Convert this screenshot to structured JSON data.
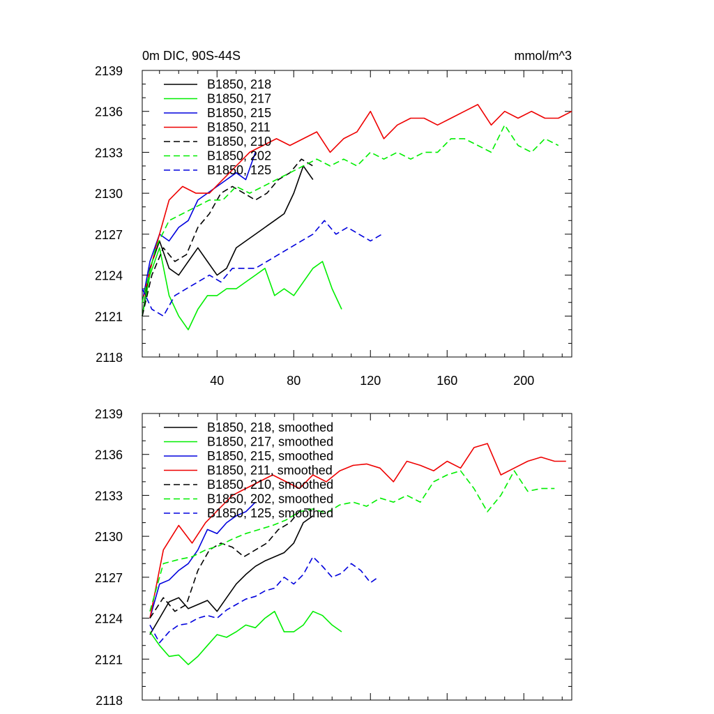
{
  "header": {
    "title": "0m DIC, 90S-44S",
    "units": "mmol/m^3"
  },
  "chart_data": [
    {
      "type": "line",
      "name": "raw",
      "xlim": [
        1,
        225
      ],
      "ylim": [
        2118,
        2139
      ],
      "xticks": [
        40,
        80,
        120,
        160,
        200
      ],
      "xtick_labels": [
        "40",
        "80",
        "120",
        "160",
        "200"
      ],
      "yticks": [
        2118,
        2121,
        2124,
        2127,
        2130,
        2133,
        2136,
        2139
      ],
      "ytick_labels": [
        "2118",
        "2121",
        "2124",
        "2127",
        "2130",
        "2133",
        "2136",
        "2139"
      ],
      "legend_position": "top-left",
      "series": [
        {
          "name": "B1850, 218",
          "color": "#000000",
          "dash": false,
          "x": [
            1,
            5,
            10,
            15,
            20,
            25,
            30,
            35,
            40,
            45,
            50,
            55,
            60,
            65,
            70,
            75,
            80,
            85,
            90
          ],
          "y": [
            2121,
            2124.5,
            2126.5,
            2124.5,
            2124,
            2125,
            2126,
            2125,
            2124,
            2124.5,
            2126,
            2126.5,
            2127,
            2127.5,
            2128,
            2128.5,
            2130,
            2132,
            2131
          ]
        },
        {
          "name": "B1850, 217",
          "color": "#00ee00",
          "dash": false,
          "x": [
            1,
            5,
            10,
            15,
            20,
            25,
            30,
            35,
            40,
            45,
            50,
            55,
            60,
            65,
            70,
            75,
            80,
            85,
            90,
            95,
            100,
            105
          ],
          "y": [
            2121,
            2124,
            2126,
            2122.5,
            2121,
            2120,
            2121.5,
            2122.5,
            2122.5,
            2123,
            2123,
            2123.5,
            2124,
            2124.5,
            2122.5,
            2123,
            2122.5,
            2123.5,
            2124.5,
            2125,
            2123,
            2121.5
          ]
        },
        {
          "name": "B1850, 215",
          "color": "#0000dd",
          "dash": false,
          "x": [
            1,
            5,
            10,
            15,
            20,
            25,
            30,
            35,
            40,
            45,
            50,
            55,
            60
          ],
          "y": [
            2122,
            2125,
            2127,
            2126.5,
            2127.5,
            2128,
            2129.5,
            2130,
            2130.5,
            2131,
            2131.5,
            2131,
            2133
          ]
        },
        {
          "name": "B1850, 211",
          "color": "#ee0000",
          "dash": false,
          "x": [
            1,
            8,
            15,
            22,
            29,
            36,
            43,
            50,
            57,
            64,
            71,
            78,
            85,
            92,
            99,
            106,
            113,
            120,
            127,
            134,
            141,
            148,
            155,
            162,
            169,
            176,
            183,
            190,
            197,
            204,
            211,
            218,
            225
          ],
          "y": [
            2122,
            2126,
            2129.5,
            2130.5,
            2130,
            2130,
            2131,
            2132,
            2133,
            2133.5,
            2134,
            2133.5,
            2134,
            2134.5,
            2133,
            2134,
            2134.5,
            2136,
            2134,
            2135,
            2135.5,
            2135.5,
            2135,
            2135.5,
            2136,
            2136.5,
            2135,
            2136,
            2135.5,
            2136,
            2135.5,
            2135.5,
            2136
          ]
        },
        {
          "name": "B1850, 210",
          "color": "#000000",
          "dash": true,
          "x": [
            1,
            6,
            12,
            18,
            24,
            30,
            36,
            42,
            48,
            54,
            60,
            66,
            72,
            78,
            84,
            90
          ],
          "y": [
            2121,
            2124,
            2126,
            2125,
            2125.5,
            2127.5,
            2128.5,
            2130,
            2130.5,
            2130,
            2129.5,
            2130,
            2131,
            2131.5,
            2132.5,
            2132
          ]
        },
        {
          "name": "B1850, 202",
          "color": "#00ee00",
          "dash": true,
          "x": [
            1,
            8,
            15,
            22,
            29,
            36,
            43,
            50,
            57,
            64,
            71,
            78,
            85,
            92,
            99,
            106,
            113,
            120,
            127,
            134,
            141,
            148,
            155,
            162,
            169,
            176,
            183,
            190,
            197,
            204,
            211,
            218
          ],
          "y": [
            2122,
            2126,
            2128,
            2128.5,
            2129,
            2129.5,
            2129.5,
            2130.5,
            2130,
            2130.5,
            2131,
            2131.5,
            2132,
            2132.5,
            2132,
            2132.5,
            2132,
            2133,
            2132.5,
            2133,
            2132.5,
            2133,
            2133,
            2134,
            2134,
            2133.5,
            2133,
            2135,
            2133.5,
            2133,
            2134,
            2133.5
          ]
        },
        {
          "name": "B1850, 125",
          "color": "#0000dd",
          "dash": true,
          "x": [
            1,
            6,
            12,
            18,
            24,
            30,
            36,
            42,
            48,
            54,
            60,
            66,
            72,
            78,
            84,
            90,
            96,
            102,
            108,
            114,
            120,
            126
          ],
          "y": [
            2123,
            2121.5,
            2121,
            2122.5,
            2123,
            2123.5,
            2124,
            2123.5,
            2124.5,
            2124.5,
            2124.5,
            2125,
            2125.5,
            2126,
            2126.5,
            2127,
            2128,
            2127,
            2127.5,
            2127,
            2126.5,
            2127
          ]
        }
      ]
    },
    {
      "type": "line",
      "name": "smoothed",
      "xlim": [
        1,
        225
      ],
      "ylim": [
        2118,
        2139
      ],
      "xticks": [
        40,
        80,
        120,
        160,
        200
      ],
      "yticks": [
        2118,
        2121,
        2124,
        2127,
        2130,
        2133,
        2136,
        2139
      ],
      "ytick_labels": [
        "2118",
        "2121",
        "2124",
        "2127",
        "2130",
        "2133",
        "2136",
        "2139"
      ],
      "legend_position": "top-left",
      "series": [
        {
          "name": "B1850, 218, smoothed",
          "color": "#000000",
          "dash": false,
          "x": [
            5,
            10,
            15,
            20,
            25,
            30,
            35,
            40,
            45,
            50,
            55,
            60,
            65,
            70,
            75,
            80,
            85,
            90
          ],
          "y": [
            2122.8,
            2124,
            2125.2,
            2125.5,
            2124.7,
            2125,
            2125.3,
            2124.5,
            2125.5,
            2126.5,
            2127.2,
            2127.8,
            2128.2,
            2128.5,
            2128.8,
            2129.5,
            2131,
            2131.5
          ]
        },
        {
          "name": "B1850, 217, smoothed",
          "color": "#00ee00",
          "dash": false,
          "x": [
            5,
            10,
            15,
            20,
            25,
            30,
            35,
            40,
            45,
            50,
            55,
            60,
            65,
            70,
            75,
            80,
            85,
            90,
            95,
            100,
            105
          ],
          "y": [
            2123,
            2122,
            2121.2,
            2121.3,
            2120.6,
            2121.2,
            2122,
            2122.8,
            2122.6,
            2123,
            2123.5,
            2123.3,
            2124,
            2124.5,
            2123,
            2123,
            2123.5,
            2124.5,
            2124.2,
            2123.5,
            2123
          ]
        },
        {
          "name": "B1850, 215, smoothed",
          "color": "#0000dd",
          "dash": false,
          "x": [
            5,
            10,
            15,
            20,
            25,
            30,
            35,
            40,
            45,
            50,
            55,
            60
          ],
          "y": [
            2124,
            2126.5,
            2126.8,
            2127.5,
            2128,
            2129,
            2130.5,
            2130.2,
            2131,
            2131.5,
            2131.8,
            2132.5
          ]
        },
        {
          "name": "B1850, 211, smoothed",
          "color": "#ee0000",
          "dash": false,
          "x": [
            5,
            12,
            20,
            27,
            34,
            41,
            48,
            55,
            62,
            69,
            76,
            83,
            90,
            97,
            104,
            111,
            118,
            125,
            132,
            139,
            146,
            153,
            160,
            167,
            174,
            181,
            188,
            195,
            202,
            209,
            216,
            222
          ],
          "y": [
            2124,
            2129,
            2130.8,
            2129.5,
            2131,
            2132,
            2133,
            2133.5,
            2134,
            2134.5,
            2134,
            2133.5,
            2134.5,
            2134,
            2134.8,
            2135.2,
            2135.3,
            2135,
            2134,
            2135.5,
            2135.2,
            2134.8,
            2135.5,
            2135,
            2136.5,
            2136.8,
            2134.5,
            2135,
            2135.5,
            2135.8,
            2135.5,
            2135.5
          ]
        },
        {
          "name": "B1850, 210, smoothed",
          "color": "#000000",
          "dash": true,
          "x": [
            5,
            12,
            18,
            24,
            30,
            36,
            42,
            48,
            54,
            60,
            66,
            72,
            78,
            84,
            90
          ],
          "y": [
            2124,
            2125.5,
            2124.5,
            2125,
            2127.5,
            2129,
            2129.5,
            2129.2,
            2128.5,
            2129,
            2129.5,
            2130.5,
            2131,
            2132,
            2132
          ]
        },
        {
          "name": "B1850, 202, smoothed",
          "color": "#00ee00",
          "dash": true,
          "x": [
            5,
            12,
            20,
            27,
            34,
            41,
            48,
            55,
            62,
            69,
            76,
            83,
            90,
            97,
            104,
            111,
            118,
            125,
            132,
            139,
            146,
            153,
            160,
            167,
            174,
            181,
            188,
            195,
            202,
            209,
            216
          ],
          "y": [
            2124.5,
            2128,
            2128.3,
            2128.5,
            2129,
            2129.3,
            2129.8,
            2130.2,
            2130.5,
            2130.8,
            2131.2,
            2131.8,
            2132,
            2131.7,
            2132.3,
            2132.5,
            2132.2,
            2132.8,
            2132.5,
            2133,
            2132.5,
            2134,
            2134.5,
            2134.8,
            2133.5,
            2131.8,
            2133,
            2134.8,
            2133.3,
            2133.5,
            2133.5
          ]
        },
        {
          "name": "B1850, 125, smoothed",
          "color": "#0000dd",
          "dash": true,
          "x": [
            5,
            10,
            15,
            20,
            25,
            30,
            35,
            40,
            45,
            50,
            55,
            60,
            65,
            70,
            75,
            80,
            85,
            90,
            95,
            100,
            105,
            110,
            115,
            120,
            124
          ],
          "y": [
            2123.5,
            2122.2,
            2123,
            2123.5,
            2123.6,
            2124,
            2124.2,
            2124,
            2124.6,
            2125,
            2125.4,
            2125.6,
            2126,
            2126.2,
            2127,
            2126.5,
            2127.2,
            2128.5,
            2127.8,
            2127,
            2127.3,
            2128,
            2127.5,
            2126.6,
            2127
          ]
        }
      ]
    }
  ]
}
